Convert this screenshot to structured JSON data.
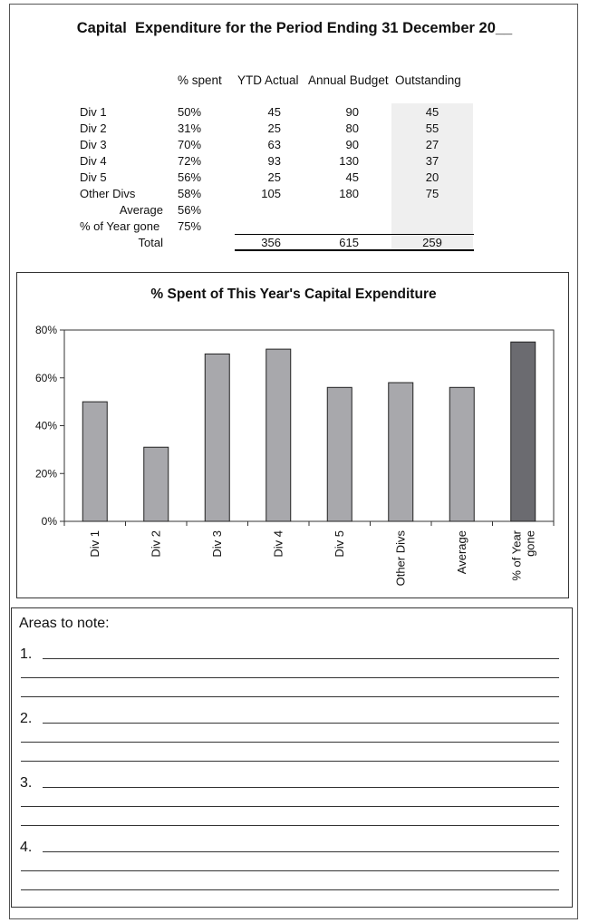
{
  "title": "Capital  Expenditure for the Period Ending 31 December 20__",
  "table": {
    "headers": {
      "pct_spent": "% spent",
      "ytd_actual": "YTD Actual",
      "annual_budget": "Annual Budget",
      "outstanding": "Outstanding"
    },
    "rows": [
      {
        "label": "Div 1",
        "pct": "50%",
        "ytd": "45",
        "budget": "90",
        "outstanding": "45"
      },
      {
        "label": "Div 2",
        "pct": "31%",
        "ytd": "25",
        "budget": "80",
        "outstanding": "55"
      },
      {
        "label": "Div 3",
        "pct": "70%",
        "ytd": "63",
        "budget": "90",
        "outstanding": "27"
      },
      {
        "label": "Div 4",
        "pct": "72%",
        "ytd": "93",
        "budget": "130",
        "outstanding": "37"
      },
      {
        "label": "Div 5",
        "pct": "56%",
        "ytd": "25",
        "budget": "45",
        "outstanding": "20"
      },
      {
        "label": "Other Divs",
        "pct": "58%",
        "ytd": "105",
        "budget": "180",
        "outstanding": "75"
      }
    ],
    "average": {
      "label": "Average",
      "pct": "56%"
    },
    "year_gone": {
      "label": "% of Year gone",
      "pct": "75%"
    },
    "total": {
      "label": "Total",
      "ytd": "356",
      "budget": "615",
      "outstanding": "259"
    }
  },
  "chart_data": {
    "type": "bar",
    "title": "% Spent of This Year's Capital Expenditure",
    "categories": [
      "Div 1",
      "Div 2",
      "Div 3",
      "Div 4",
      "Div 5",
      "Other Divs",
      "Average",
      "% of Year gone"
    ],
    "values": [
      50,
      31,
      70,
      72,
      56,
      58,
      56,
      75
    ],
    "bar_colors": [
      "#a8a8ac",
      "#a8a8ac",
      "#a8a8ac",
      "#a8a8ac",
      "#a8a8ac",
      "#a8a8ac",
      "#a8a8ac",
      "#6b6b70"
    ],
    "ylim": [
      0,
      80
    ],
    "yticks": [
      0,
      20,
      40,
      60,
      80
    ],
    "ytick_labels": [
      "0%",
      "20%",
      "40%",
      "60%",
      "80%"
    ],
    "grid": false,
    "legend": false
  },
  "notes": {
    "title": "Areas to note:",
    "items": [
      "1.",
      "2.",
      "3.",
      "4."
    ]
  }
}
